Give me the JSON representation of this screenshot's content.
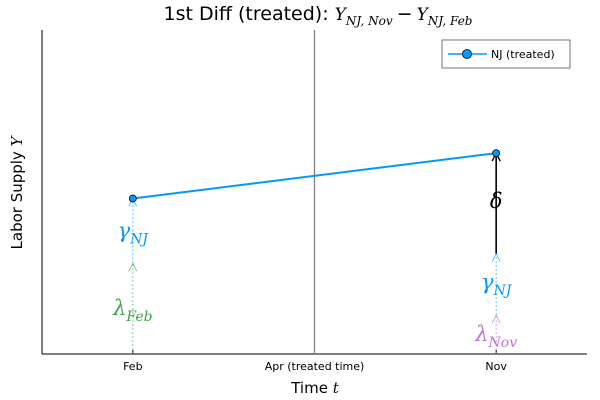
{
  "chart_data": {
    "type": "line",
    "title": {
      "prefix": "1st Diff (treated): ",
      "term1_base": "Y",
      "term1_sub": "NJ, Nov",
      "operator": "−",
      "term2_base": "Y",
      "term2_sub": "NJ, Feb"
    },
    "xlabel": {
      "text": "Time ",
      "var": "t"
    },
    "ylabel": {
      "text": "Labor Supply ",
      "var": "Y"
    },
    "categories": [
      "Feb",
      "Apr (treated time)",
      "Nov"
    ],
    "xlim": [
      -0.5,
      2.5
    ],
    "ylim": [
      0,
      1
    ],
    "grid": false,
    "legend_position": "top-right",
    "series": [
      {
        "name": "NJ (treated)",
        "color": "#009af9",
        "x": [
          0,
          2
        ],
        "y": [
          0.48,
          0.62
        ]
      }
    ],
    "treatment_line": {
      "x": 1,
      "color": "#7f7f7f"
    },
    "decompositions": [
      {
        "x": 0,
        "segments": [
          {
            "symbol": "λ",
            "subscript": "Feb",
            "from": 0,
            "to": 0.28,
            "color": "#3da44d",
            "label_y": 0.12
          },
          {
            "symbol": "γ",
            "subscript": "NJ",
            "from": 0.28,
            "to": 0.48,
            "color": "#009af9",
            "label_y": 0.36
          }
        ]
      },
      {
        "x": 2,
        "segments": [
          {
            "symbol": "λ",
            "subscript": "Nov",
            "from": 0,
            "to": 0.12,
            "color": "#c271d2",
            "label_y": 0.04
          },
          {
            "symbol": "γ",
            "subscript": "NJ",
            "from": 0.12,
            "to": 0.31,
            "color": "#009af9",
            "label_y": 0.2
          },
          {
            "symbol": "δ",
            "subscript": "",
            "from": 0.31,
            "to": 0.62,
            "color": "#000000",
            "label_y": 0.45
          }
        ]
      }
    ]
  }
}
